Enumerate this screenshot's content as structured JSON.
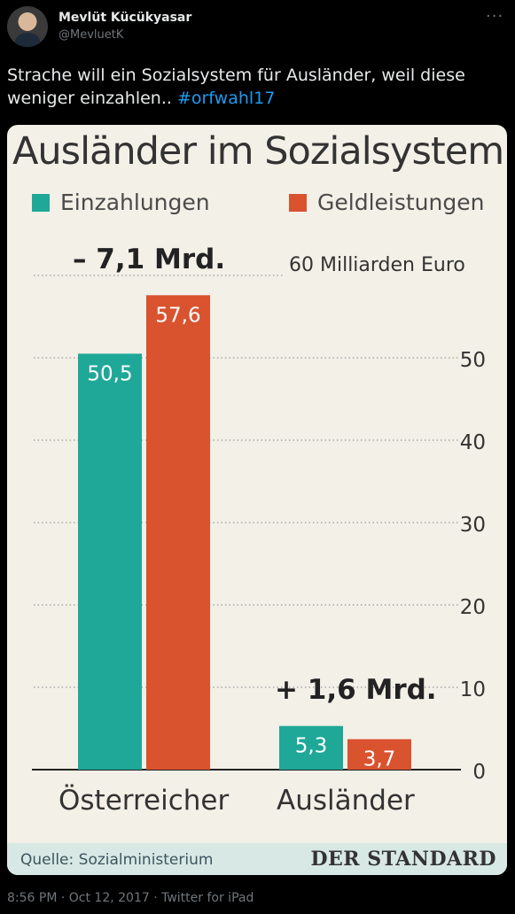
{
  "tweet": {
    "display_name": "Mevlüt Kücükyasar",
    "handle": "@MevluetK",
    "text": "Strache will ein Sozialsystem für Ausländer, weil diese weniger einzahlen.. ",
    "hashtag": "#orfwahl17",
    "timestamp": "8:56 PM · Oct 12, 2017 · Twitter for iPad",
    "more_icon": "more-dots-icon"
  },
  "image": {
    "source": "Quelle: Sozialministerium",
    "logo_text": "DER STANDARD"
  },
  "chart_data": {
    "type": "bar",
    "title": "Ausländer im Sozialsystem",
    "unit_label": "60 Milliarden Euro",
    "categories": [
      "Österreicher",
      "Ausländer"
    ],
    "series": [
      {
        "name": "Einzahlungen",
        "color": "#1fa898",
        "values": [
          50.5,
          5.3
        ],
        "labels": [
          "50,5",
          "5,3"
        ]
      },
      {
        "name": "Geldleistungen",
        "color": "#d9532f",
        "values": [
          57.6,
          3.7
        ],
        "labels": [
          "57,6",
          "3,7"
        ]
      }
    ],
    "annotations": [
      "– 7,1 Mrd.",
      "+ 1,6 Mrd."
    ],
    "ylim": [
      0,
      60
    ],
    "yticks": [
      0,
      10,
      20,
      30,
      40,
      50
    ],
    "ytick_labels": [
      "0",
      "10",
      "20",
      "30",
      "40",
      "50"
    ],
    "grid": true
  }
}
